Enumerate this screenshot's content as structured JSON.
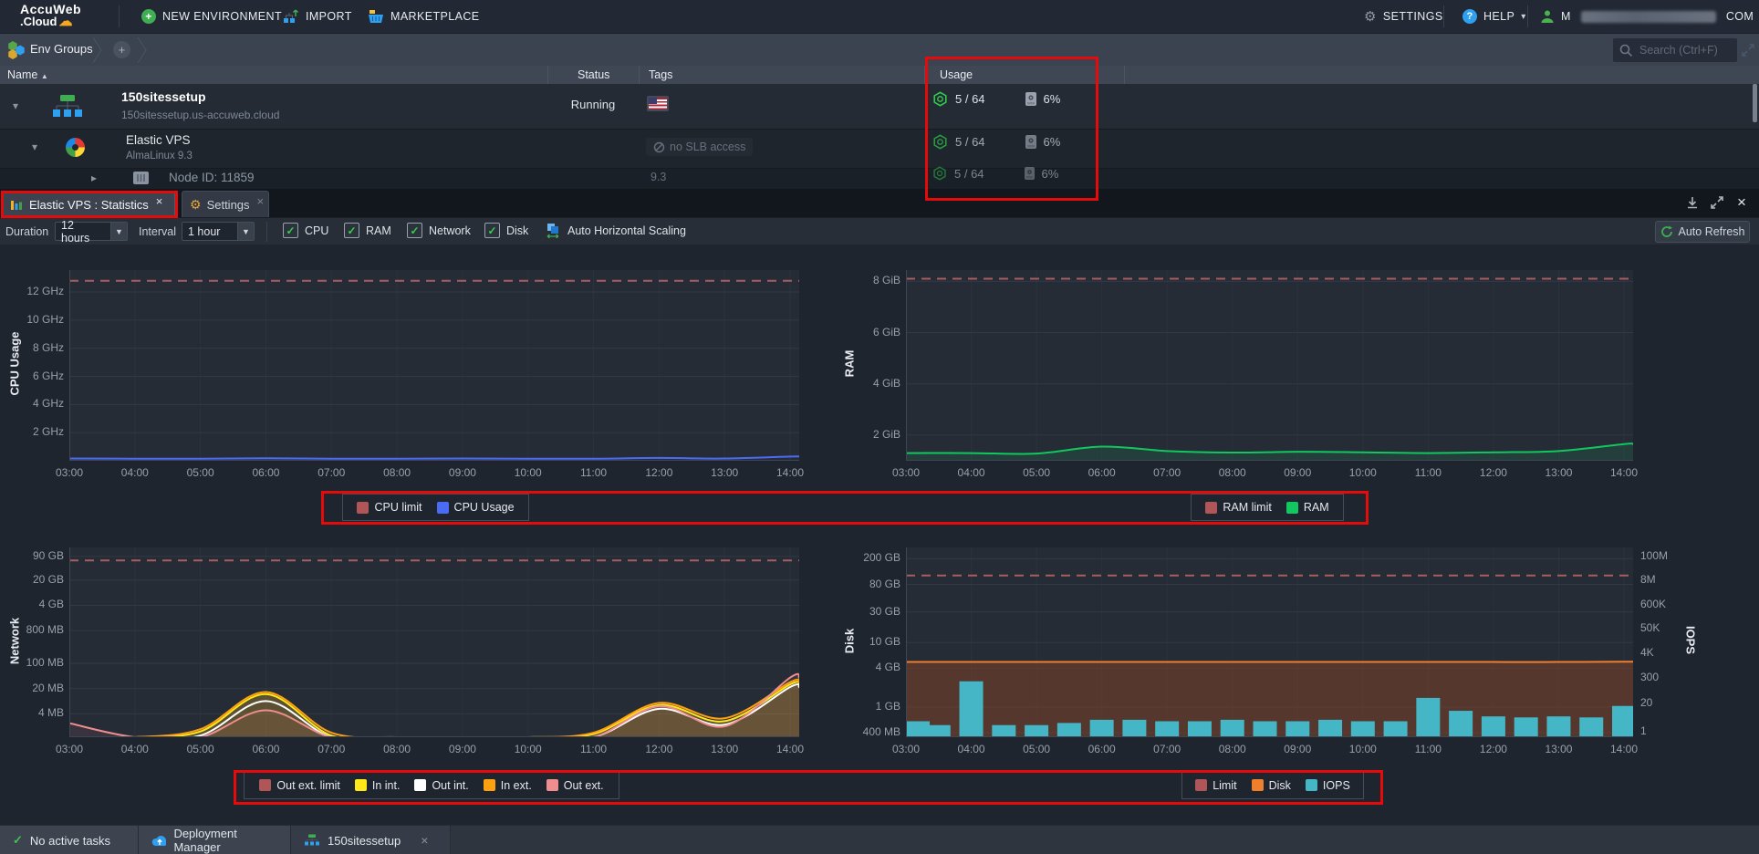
{
  "topbar": {
    "logo_line1": "AccuWeb",
    "logo_line2": ".Cloud",
    "new_environment": "NEW ENVIRONMENT",
    "import": "IMPORT",
    "marketplace": "MARKETPLACE",
    "settings": "SETTINGS",
    "help": "HELP",
    "user_prefix": "M",
    "user_suffix": "COM"
  },
  "envbar": {
    "title": "Env Groups",
    "search_placeholder": "Search (Ctrl+F)"
  },
  "table": {
    "columns": {
      "name": "Name",
      "status": "Status",
      "tags": "Tags",
      "usage": "Usage"
    },
    "rows": {
      "r1": {
        "title": "150sitessetup",
        "subtitle": "150sitessetup.us-accuweb.cloud",
        "status": "Running",
        "usage_nodes": "5 / 64",
        "usage_disk": "6%"
      },
      "r2": {
        "title": "Elastic VPS",
        "subtitle": "AlmaLinux 9.3",
        "tag": "no SLB access",
        "usage_nodes": "5 / 64",
        "usage_disk": "6%"
      },
      "r3": {
        "title": "Node ID: 11859",
        "version": "9.3",
        "usage_nodes": "5 / 64",
        "usage_disk": "6%"
      }
    }
  },
  "tabs": {
    "statistics": "Elastic VPS : Statistics",
    "settings": "Settings"
  },
  "toolbar": {
    "duration_label": "Duration",
    "duration_value": "12 hours",
    "interval_label": "Interval",
    "interval_value": "1 hour",
    "checkboxes": [
      "CPU",
      "RAM",
      "Network",
      "Disk"
    ],
    "auto_horizontal_scaling": "Auto Horizontal Scaling",
    "auto_refresh": "Auto Refresh"
  },
  "statusbar": {
    "no_active_tasks": "No active tasks",
    "deployment_manager": "Deployment Manager",
    "env_tab": "150sitessetup"
  },
  "colors": {
    "annotation": "#e60b0b",
    "cpu_limit": "#b05658",
    "cpu_line": "#4a6cf5",
    "ram_line": "#12c75f",
    "net_in_int": "#ffe81a",
    "net_out_int": "#ffffff",
    "net_in_ext": "#ffa010",
    "net_out_ext": "#ef8e8e",
    "disk_line": "#ee7f2d",
    "iops_bar": "#45b6c5"
  },
  "chart_data": [
    {
      "id": "cpu",
      "type": "line",
      "ylabel": "CPU Usage",
      "unit": "GHz",
      "x": [
        "03:00",
        "04:00",
        "05:00",
        "06:00",
        "07:00",
        "08:00",
        "09:00",
        "10:00",
        "11:00",
        "12:00",
        "13:00",
        "14:00"
      ],
      "ytick_values": [
        2,
        4,
        6,
        8,
        10,
        12
      ],
      "ytick_labels": [
        "2 GHz",
        "4 GHz",
        "6 GHz",
        "8 GHz",
        "10 GHz",
        "12 GHz"
      ],
      "scale": "linear",
      "ymin": 0,
      "ymax": 13.56,
      "limit": {
        "label": "CPU limit",
        "value": 12.8,
        "color": "#a85d60"
      },
      "series": [
        {
          "name": "CPU Usage",
          "color": "#4a6cf5",
          "values": [
            0.16,
            0.15,
            0.15,
            0.18,
            0.15,
            0.15,
            0.16,
            0.15,
            0.15,
            0.2,
            0.16,
            0.3
          ]
        }
      ],
      "legend": [
        {
          "label": "CPU limit",
          "color": "#b05658"
        },
        {
          "label": "CPU Usage",
          "color": "#4a6cf5"
        }
      ]
    },
    {
      "id": "ram",
      "type": "area",
      "ylabel": "RAM",
      "unit": "GiB",
      "x": [
        "03:00",
        "04:00",
        "05:00",
        "06:00",
        "07:00",
        "08:00",
        "09:00",
        "10:00",
        "11:00",
        "12:00",
        "13:00",
        "14:00"
      ],
      "ytick_values": [
        2,
        4,
        6,
        8
      ],
      "ytick_labels": [
        "2 GiB",
        "4 GiB",
        "6 GiB",
        "8 GiB"
      ],
      "scale": "linear",
      "ymin": 1,
      "ymax": 8.44,
      "limit": {
        "label": "RAM limit",
        "value": 8.1,
        "color": "#a85d60"
      },
      "series": [
        {
          "name": "RAM",
          "color": "#12c75f",
          "fill": "rgba(18,199,95,0.12)",
          "values": [
            1.3,
            1.3,
            1.28,
            1.55,
            1.38,
            1.32,
            1.35,
            1.33,
            1.3,
            1.33,
            1.38,
            1.65
          ]
        }
      ],
      "legend": [
        {
          "label": "RAM limit",
          "color": "#b05658"
        },
        {
          "label": "RAM",
          "color": "#12c75f"
        }
      ]
    },
    {
      "id": "network",
      "type": "area",
      "ylabel": "Network",
      "unit": "MB",
      "x": [
        "03:00",
        "04:00",
        "05:00",
        "06:00",
        "07:00",
        "08:00",
        "09:00",
        "10:00",
        "11:00",
        "12:00",
        "13:00",
        "14:00"
      ],
      "ytick_values": [
        4,
        20,
        100,
        800,
        4000,
        20000,
        90000
      ],
      "ytick_labels": [
        "4 MB",
        "20 MB",
        "100 MB",
        "800 MB",
        "4 GB",
        "20 GB",
        "90 GB"
      ],
      "scale": "log",
      "ymin": 0.9,
      "ymax": 160000,
      "limit": {
        "label": "Out ext. limit",
        "value": 70000,
        "color": "#a85d60"
      },
      "series": [
        {
          "name": "In int.",
          "color": "#ffe81a",
          "fill": "rgba(230,180,40,0.28)",
          "values": [
            0.5,
            0.45,
            1.3,
            14,
            1.0,
            0.5,
            0.6,
            0.8,
            1.1,
            7,
            2.5,
            26
          ]
        },
        {
          "name": "Out int.",
          "color": "#ffffff",
          "values": [
            0.4,
            0.35,
            1.0,
            9,
            0.8,
            0.4,
            0.5,
            0.7,
            0.9,
            5.5,
            2,
            22
          ]
        },
        {
          "name": "In ext.",
          "color": "#ffa010",
          "values": [
            0.6,
            0.5,
            1.5,
            16,
            1.2,
            0.55,
            0.7,
            0.9,
            1.2,
            8,
            3,
            30
          ]
        },
        {
          "name": "Out ext.",
          "color": "#ef8e8e",
          "fill": "rgba(220,120,120,0.10)",
          "values": [
            2.2,
            0.35,
            0.8,
            5,
            0.7,
            0.35,
            0.4,
            0.6,
            0.8,
            6.5,
            1.8,
            40
          ]
        }
      ],
      "legend": [
        {
          "label": "Out ext. limit",
          "color": "#b05658"
        },
        {
          "label": "In int.",
          "color": "#ffe81a"
        },
        {
          "label": "Out int.",
          "color": "#ffffff"
        },
        {
          "label": "In ext.",
          "color": "#ffa010"
        },
        {
          "label": "Out ext.",
          "color": "#ef8e8e"
        }
      ]
    },
    {
      "id": "disk",
      "type": "line",
      "ylabel": "Disk",
      "ylabel_right": "IOPS",
      "unit": "MB",
      "x": [
        "03:00",
        "04:00",
        "05:00",
        "06:00",
        "07:00",
        "08:00",
        "09:00",
        "10:00",
        "11:00",
        "12:00",
        "13:00",
        "14:00"
      ],
      "ytick_values": [
        400,
        1000,
        4000,
        10000,
        30000,
        80000,
        200000
      ],
      "ytick_labels": [
        "400 MB",
        "1 GB",
        "4 GB",
        "10 GB",
        "30 GB",
        "80 GB",
        "200 GB"
      ],
      "scale": "log",
      "ymin": 340,
      "ymax": 300000,
      "right_ticks": [
        1,
        20,
        300,
        4000,
        50000,
        600000,
        8000000,
        100000000
      ],
      "right_tick_labels": [
        "1",
        "20",
        "300",
        "4K",
        "50K",
        "600K",
        "8M",
        "100M"
      ],
      "right_scale": {
        "ymin": 0.56,
        "ymax": 260000000
      },
      "limit": {
        "label": "Limit",
        "value": 110000,
        "color": "#a85d60"
      },
      "series": [
        {
          "name": "Disk",
          "color": "#ee7f2d",
          "fill": "rgba(126,66,40,0.55)",
          "values": [
            5000,
            5000,
            5000,
            5000,
            5000,
            5000,
            5000,
            5000,
            5000,
            5000,
            5000,
            5050
          ]
        }
      ],
      "bars": {
        "name": "IOPS",
        "color": "#45b6c5",
        "axis": "right",
        "interval": "30 min",
        "values": [
          3,
          2,
          200,
          2,
          2,
          2.5,
          3.5,
          3.5,
          3,
          3,
          3.5,
          3,
          3,
          3.5,
          3,
          3,
          35,
          9,
          5,
          4.5,
          5,
          4.5,
          15
        ]
      },
      "legend": [
        {
          "label": "Limit",
          "color": "#b05658"
        },
        {
          "label": "Disk",
          "color": "#ee7f2d"
        },
        {
          "label": "IOPS",
          "color": "#45b6c5"
        }
      ]
    }
  ]
}
